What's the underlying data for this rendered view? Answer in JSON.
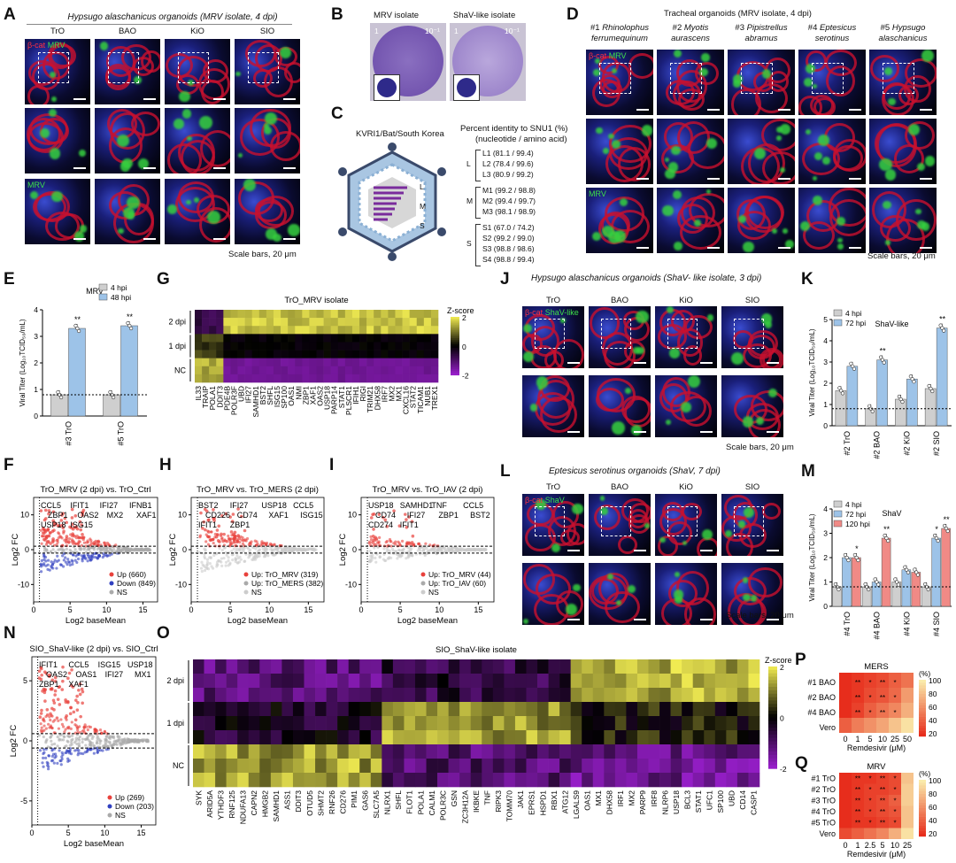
{
  "panels": {
    "A": {
      "label": "A",
      "title": "Hypsugo alaschanicus organoids (MRV isolate, 4 dpi)",
      "cols": [
        "TrO",
        "BAO",
        "KiO",
        "SIO"
      ],
      "row1_channels": [
        "β-cat",
        "MRV"
      ],
      "row3_channel": "MRV",
      "scale": "Scale bars, 20 μm"
    },
    "B": {
      "label": "B",
      "cols": [
        "MRV isolate",
        "ShaV-like isolate"
      ],
      "dilution": "10⁻¹",
      "neg": "1"
    },
    "C": {
      "label": "C",
      "virus": "KVRI1/Bat/South Korea",
      "identity_title": "Percent identity to SNU1 (%)",
      "identity_sub": "(nucleotide / amino acid)",
      "segment_letters": [
        "L",
        "M",
        "S"
      ],
      "groups": [
        {
          "seg": "L",
          "items": [
            "L1 (81.1 / 99.4)",
            "L2 (78.4 / 99.6)",
            "L3 (80.9 / 99.2)"
          ]
        },
        {
          "seg": "M",
          "items": [
            "M1 (99.2 / 98.8)",
            "M2 (99.4 / 99.7)",
            "M3 (98.1 / 98.9)"
          ]
        },
        {
          "seg": "S",
          "items": [
            "S1 (67.0 / 74.2)",
            "S2 (99.2 / 99.0)",
            "S3 (98.8 / 98.6)",
            "S4 (98.8 / 99.4)"
          ]
        }
      ]
    },
    "D": {
      "label": "D",
      "title": "Tracheal organoids (MRV isolate, 4 dpi)",
      "cols": [
        [
          "#1 ",
          "Rhinolophus",
          "ferrumequinum"
        ],
        [
          "#2 ",
          "Myotis",
          "aurascens"
        ],
        [
          "#3 ",
          "Pipistrellus",
          "abramus"
        ],
        [
          "#4 ",
          "Eptesicus",
          "serotinus"
        ],
        [
          "#5 ",
          "Hypsugo",
          "alaschanicus"
        ]
      ],
      "row1_channels": [
        "β-cat",
        "MRV"
      ],
      "row3_channel": "MRV",
      "scale": "Scale bars, 20 μm"
    },
    "E": {
      "label": "E",
      "title": "MRV",
      "legend": [
        "4 hpi",
        "48 hpi"
      ],
      "ylabel": "Viral Titer (Log₁₀TCID₅₀/mL)",
      "sig": "**"
    },
    "F": {
      "label": "F",
      "title": "TrO_MRV (2 dpi) vs. TrO_Ctrl",
      "genes": [
        "CCL5",
        "IFIT1",
        "IFI27",
        "IFNB1",
        "ZBP1",
        "OAS2",
        "MX2",
        "XAF1",
        "USP18",
        "ISG15"
      ],
      "legend": [
        "Up (660)",
        "Down (849)",
        "NS"
      ],
      "xlabel": "Log2 baseMean",
      "ylabel": "Log2 FC"
    },
    "G": {
      "label": "G",
      "title": "TrO_MRV isolate",
      "rows": [
        "2 dpi",
        "1 dpi",
        "NC"
      ],
      "cbar_title": "Z-score",
      "cbar_ticks": [
        "2",
        "0",
        "-2"
      ],
      "genes": [
        "IL33",
        "TRAIP",
        "POLA1",
        "DDIT3",
        "PDE4B",
        "POLR3F",
        "UBD",
        "IFI27",
        "SAMHD1",
        "BST2",
        "SHFL",
        "ISG15",
        "SP100",
        "OAS1",
        "NMI",
        "ZBP1",
        "XAF1",
        "OAS2",
        "USP18",
        "PARP14",
        "STAT1",
        "PLSCR1",
        "IFIH1",
        "RIGI",
        "TRIM21",
        "DHX58",
        "IRF7",
        "MX2",
        "MX1",
        "CXCL16",
        "STAT2",
        "TICAM1",
        "NUB1",
        "TREX1"
      ]
    },
    "H": {
      "label": "H",
      "title": "TrO_MRV vs. TrO_MERS (2 dpi)",
      "genes": [
        "BST2",
        "IFI27",
        "USP18",
        "CCL5",
        "CD226",
        "CD74",
        "XAF1",
        "ISG15",
        "IFIT1",
        "ZBP1"
      ],
      "legend": [
        "Up: TrO_MRV (319)",
        "Up: TrO_MERS (382)",
        "NS"
      ],
      "xlabel": "Log2 baseMean",
      "ylabel": "Log2 FC"
    },
    "I": {
      "label": "I",
      "title": "TrO_MRV vs. TrO_IAV (2 dpi)",
      "genes": [
        "USP18",
        "SAMHD1",
        "TNF",
        "CCL5",
        "CD74",
        "IFI27",
        "ZBP1",
        "BST2",
        "CD274",
        "IFIT1"
      ],
      "legend": [
        "Up: TrO_MRV (44)",
        "Up: TrO_IAV (60)",
        "NS"
      ],
      "xlabel": "Log2 baseMean",
      "ylabel": "Log2 FC"
    },
    "J": {
      "label": "J",
      "title": "Hypsugo alaschanicus organoids (ShaV- like isolate, 3 dpi)",
      "cols": [
        "TrO",
        "BAO",
        "KiO",
        "SIO"
      ],
      "channels": [
        "β-cat",
        "ShaV-like"
      ],
      "scale": "Scale bars, 20 μm"
    },
    "K": {
      "label": "K",
      "title": "ShaV-like",
      "legend": [
        "4 hpi",
        "72 hpi"
      ],
      "ylabel": "Viral Titer (Log₁₀TCID₅₀/mL)",
      "sig": "**"
    },
    "L": {
      "label": "L",
      "title": "Eptesicus serotinus organoids (ShaV, 7 dpi)",
      "cols": [
        "TrO",
        "BAO",
        "KiO",
        "SIO"
      ],
      "channels": [
        "β-cat",
        "ShaV"
      ],
      "scale": "Scale bars, 20 μm"
    },
    "M": {
      "label": "M",
      "title": "ShaV",
      "legend": [
        "4 hpi",
        "72 hpi",
        "120 hpi"
      ],
      "ylabel": "Viral Titer (Log₁₀TCID₅₀/mL)",
      "sig1": "*",
      "sig2": "**"
    },
    "N": {
      "label": "N",
      "title": "SIO_ShaV-like (2 dpi) vs. SIO_Ctrl",
      "genes": [
        "IFIT1",
        "CCL5",
        "ISG15",
        "USP18",
        "OAS2",
        "OAS1",
        "IFI27",
        "MX1",
        "ZBP1",
        "XAF1"
      ],
      "legend": [
        "Up (269)",
        "Down (203)",
        "NS"
      ],
      "xlabel": "Log2 baseMean",
      "ylabel": "Log2 FC"
    },
    "O": {
      "label": "O",
      "title": "SIO_ShaV-like isolate",
      "rows": [
        "2 dpi",
        "1 dpi",
        "NC"
      ],
      "cbar_title": "Z-score",
      "cbar_ticks": [
        "2",
        "0",
        "-2"
      ],
      "genes": [
        "SYK",
        "ARID5A",
        "YTHDF3",
        "RNF125",
        "NDUFA13",
        "CAPN2",
        "HMGB2",
        "SAMHD1",
        "ASS1",
        "DDIT3",
        "OTUD5",
        "SHMT2",
        "RNF26",
        "CD276",
        "PIM1",
        "GAS6",
        "SLC7A5",
        "NLRX1",
        "SHFL",
        "FLOT1",
        "POLA1",
        "CALM1",
        "POLR3C",
        "GSN",
        "ZC3H12A",
        "IKBKE",
        "TNF",
        "RIPK3",
        "TOMM70",
        "JAK1",
        "EPRS1",
        "HSPD1",
        "RBX1",
        "ATG12",
        "LGALS9",
        "OAS1",
        "MX1",
        "DHX58",
        "IRF1",
        "MX2",
        "PARP9",
        "IRF8",
        "NLRP6",
        "USP18",
        "BCL3",
        "STAT1",
        "UFC1",
        "SP100",
        "UBD",
        "CD14",
        "CASP1"
      ]
    },
    "P": {
      "label": "P",
      "title": "MERS",
      "rows": [
        "#1 BAO",
        "#2 BAO",
        "#4 BAO",
        "Vero"
      ],
      "xticks": [
        "0",
        "1",
        "5",
        "10",
        "25",
        "50"
      ],
      "xlabel": "Remdesivir (μM)",
      "cbar_title": "(%)",
      "cbar_ticks": [
        "100",
        "80",
        "60",
        "40",
        "20"
      ],
      "star": "*",
      "dstar": "**"
    },
    "Q": {
      "label": "Q",
      "title": "MRV",
      "rows": [
        "#1 TrO",
        "#2 TrO",
        "#3 TrO",
        "#4 TrO",
        "#5 TrO",
        "Vero"
      ],
      "xticks": [
        "0",
        "1",
        "2.5",
        "5",
        "10",
        "25"
      ],
      "xlabel": "Remdesivir (μM)",
      "cbar_title": "(%)",
      "cbar_ticks": [
        "100",
        "80",
        "60",
        "40",
        "20"
      ],
      "star": "*",
      "dstar": "**"
    }
  },
  "chart_data": [
    {
      "type": "bar",
      "panel": "E",
      "title": "MRV",
      "categories": [
        "#3 TrO",
        "#5 TrO"
      ],
      "series": [
        {
          "name": "4 hpi",
          "values": [
            0.8,
            0.8
          ]
        },
        {
          "name": "48 hpi",
          "values": [
            3.3,
            3.4
          ]
        }
      ],
      "ylabel": "Viral Titer (Log10TCID50/mL)",
      "ylim": [
        0,
        4
      ],
      "yticks": [
        0,
        1,
        2,
        3,
        4
      ],
      "lod": 0.8
    },
    {
      "type": "bar",
      "panel": "K",
      "title": "ShaV-like",
      "categories": [
        "#2 TrO",
        "#2 BAO",
        "#2 KiO",
        "#2 SIO"
      ],
      "series": [
        {
          "name": "4 hpi",
          "values": [
            1.65,
            0.8,
            1.25,
            1.75
          ]
        },
        {
          "name": "72 hpi",
          "values": [
            2.8,
            3.1,
            2.2,
            4.6
          ]
        }
      ],
      "ylabel": "Viral Titer (Log10TCID50/mL)",
      "ylim": [
        0,
        5
      ],
      "yticks": [
        0,
        1,
        2,
        3,
        4,
        5
      ],
      "lod": 0.8
    },
    {
      "type": "bar",
      "panel": "M",
      "title": "ShaV",
      "categories": [
        "#4 TrO",
        "#4 BAO",
        "#4 KiO",
        "#4 SIO"
      ],
      "series": [
        {
          "name": "4 hpi",
          "values": [
            0.8,
            0.8,
            1.0,
            0.8
          ]
        },
        {
          "name": "72 hpi",
          "values": [
            2.0,
            1.0,
            1.5,
            2.8
          ]
        },
        {
          "name": "120 hpi",
          "values": [
            2.0,
            2.8,
            1.4,
            3.2
          ]
        }
      ],
      "ylabel": "Viral Titer (Log10TCID50/mL)",
      "ylim": [
        0,
        4
      ],
      "yticks": [
        0,
        1,
        2,
        3,
        4
      ],
      "lod": 0.8
    },
    {
      "type": "scatter",
      "panel": "F",
      "title": "TrO_MRV (2 dpi) vs. TrO_Ctrl",
      "xlabel": "Log2 baseMean",
      "ylabel": "Log2 FC",
      "xlim": [
        0,
        17
      ],
      "ylim": [
        -15,
        15
      ],
      "xticks": [
        0,
        5,
        10,
        15
      ],
      "yticks": [
        -10,
        0,
        10
      ]
    },
    {
      "type": "scatter",
      "panel": "H",
      "title": "TrO_MRV vs. TrO_MERS (2 dpi)",
      "xlabel": "Log2 baseMean",
      "ylabel": "Log2 FC",
      "xlim": [
        0,
        17
      ],
      "ylim": [
        -15,
        15
      ],
      "xticks": [
        0,
        5,
        10,
        15
      ],
      "yticks": [
        -10,
        0,
        10
      ]
    },
    {
      "type": "scatter",
      "panel": "I",
      "title": "TrO_MRV vs. TrO_IAV (2 dpi)",
      "xlabel": "Log2 baseMean",
      "ylabel": "Log2 FC",
      "xlim": [
        0,
        17
      ],
      "ylim": [
        -15,
        15
      ],
      "xticks": [
        0,
        5,
        10,
        15
      ],
      "yticks": [
        -10,
        0,
        10
      ]
    },
    {
      "type": "scatter",
      "panel": "N",
      "title": "SIO_ShaV-like (2 dpi) vs. SIO_Ctrl",
      "xlabel": "Log2 baseMean",
      "ylabel": "Log2 FC",
      "xlim": [
        0,
        17
      ],
      "ylim": [
        -7,
        7
      ],
      "xticks": [
        0,
        5,
        10,
        15
      ],
      "yticks": [
        -5,
        0,
        5
      ]
    },
    {
      "type": "heatmap",
      "panel": "P",
      "title": "MERS",
      "rows": [
        "#1 BAO",
        "#2 BAO",
        "#4 BAO",
        "Vero"
      ],
      "cols": [
        "0",
        "1",
        "5",
        "10",
        "25",
        "50"
      ],
      "values": [
        [
          5,
          10,
          15,
          20,
          30,
          40
        ],
        [
          5,
          10,
          20,
          25,
          35,
          60
        ],
        [
          5,
          15,
          30,
          40,
          50,
          70
        ],
        [
          30,
          45,
          55,
          65,
          80,
          95
        ]
      ]
    },
    {
      "type": "heatmap",
      "panel": "Q",
      "title": "MRV",
      "rows": [
        "#1 TrO",
        "#2 TrO",
        "#3 TrO",
        "#4 TrO",
        "#5 TrO",
        "Vero"
      ],
      "cols": [
        "0",
        "1",
        "2.5",
        "5",
        "10",
        "25"
      ],
      "values": [
        [
          5,
          10,
          10,
          15,
          20,
          80
        ],
        [
          5,
          10,
          15,
          15,
          20,
          85
        ],
        [
          5,
          10,
          15,
          20,
          30,
          85
        ],
        [
          5,
          10,
          15,
          20,
          25,
          80
        ],
        [
          5,
          10,
          10,
          15,
          20,
          80
        ],
        [
          20,
          30,
          40,
          50,
          70,
          95
        ]
      ]
    }
  ]
}
